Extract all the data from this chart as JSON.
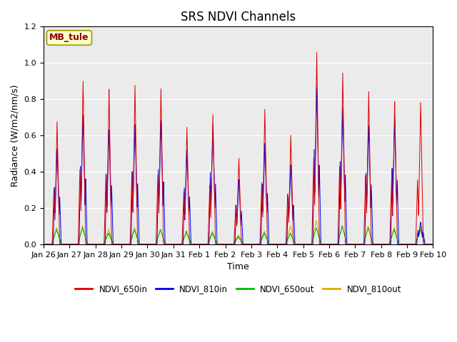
{
  "title": "SRS NDVI Channels",
  "xlabel": "Time",
  "ylabel": "Radiance (W/m2/nm/s)",
  "annotation_text": "MB_tule",
  "annotation_bg": "#FFFFCC",
  "annotation_border": "#999900",
  "annotation_text_color": "#880000",
  "ylim": [
    0,
    1.2
  ],
  "legend_entries": [
    "NDVI_650in",
    "NDVI_810in",
    "NDVI_650out",
    "NDVI_810out"
  ],
  "line_colors": [
    "#DD0000",
    "#0000EE",
    "#00BB00",
    "#DDAA00"
  ],
  "background_color": "#EBEBEB",
  "grid_color": "white",
  "title_fontsize": 12,
  "label_fontsize": 9,
  "tick_fontsize": 8,
  "day_peaks_650in": [
    0.67,
    0.9,
    0.85,
    0.87,
    0.85,
    0.64,
    0.71,
    0.47,
    0.74,
    0.6,
    1.05,
    0.94,
    0.84,
    0.78,
    0.78
  ],
  "day_peaks_810in": [
    0.52,
    0.71,
    0.63,
    0.66,
    0.68,
    0.51,
    0.65,
    0.35,
    0.55,
    0.43,
    0.86,
    0.75,
    0.65,
    0.69,
    0.12
  ],
  "day_peaks_650out": [
    0.08,
    0.09,
    0.06,
    0.08,
    0.08,
    0.07,
    0.06,
    0.04,
    0.06,
    0.06,
    0.09,
    0.1,
    0.09,
    0.08,
    0.08
  ],
  "day_peaks_810out": [
    0.09,
    0.1,
    0.08,
    0.09,
    0.08,
    0.06,
    0.07,
    0.05,
    0.07,
    0.1,
    0.13,
    0.1,
    0.1,
    0.09,
    0.09
  ],
  "x_tick_labels": [
    "Jan 26",
    "Jan 27",
    "Jan 28",
    "Jan 29",
    "Jan 30",
    "Jan 31",
    "Feb 1",
    "Feb 2",
    "Feb 3",
    "Feb 4",
    "Feb 5",
    "Feb 6",
    "Feb 7",
    "Feb 8",
    "Feb 9",
    "Feb 10"
  ],
  "n_days": 15
}
